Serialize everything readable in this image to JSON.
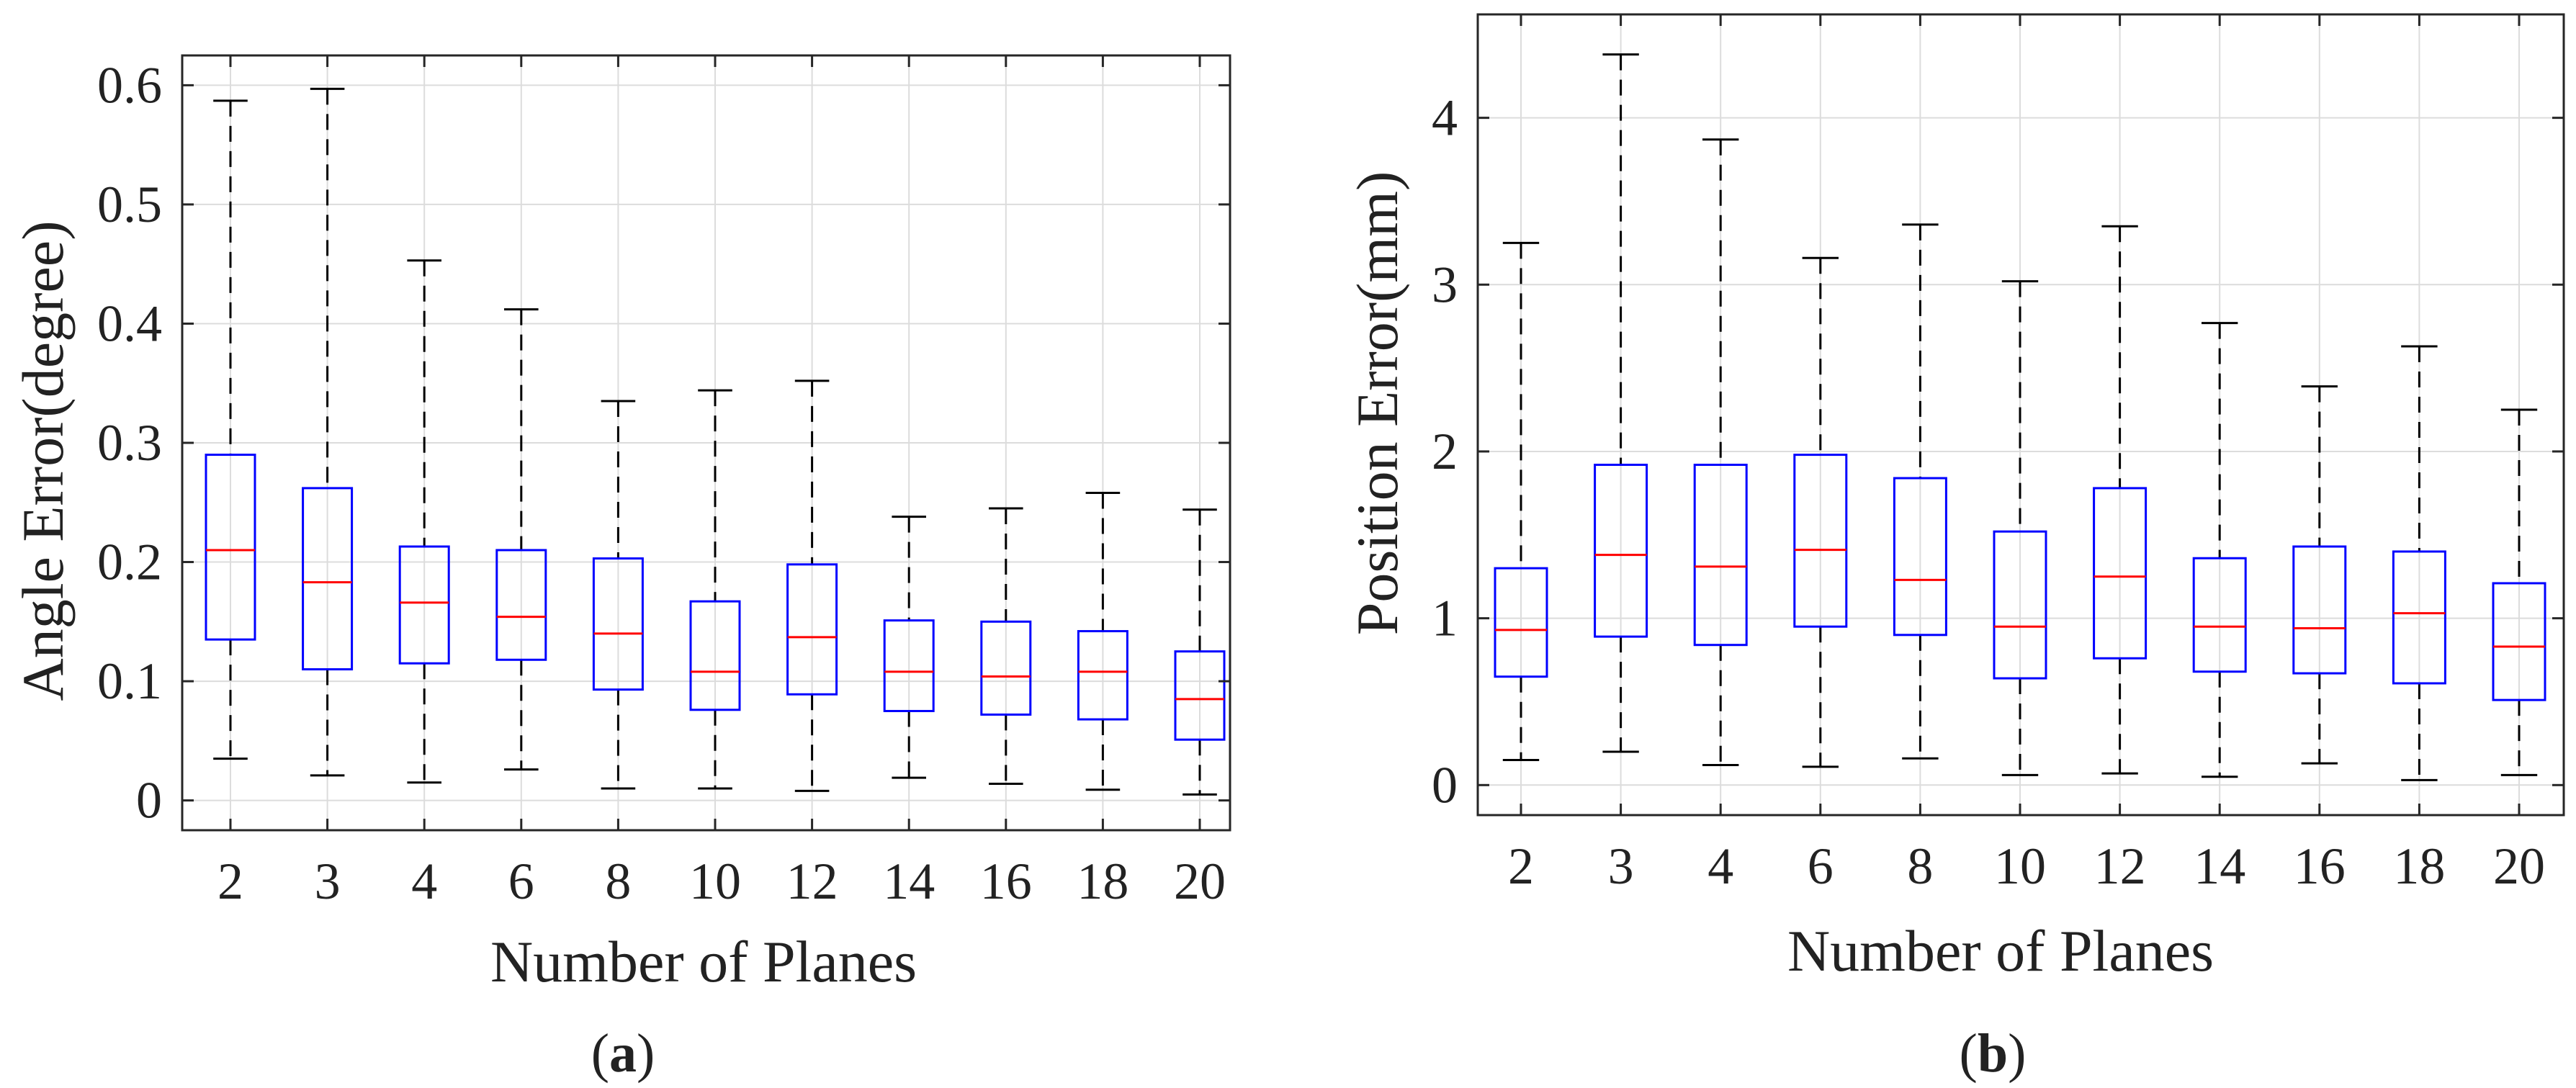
{
  "figure": {
    "captions": [
      {
        "prefix": "(",
        "letter": "a",
        "suffix": ")"
      },
      {
        "prefix": "(",
        "letter": "b",
        "suffix": ")"
      }
    ]
  },
  "chart_data": [
    {
      "type": "boxplot",
      "title": "",
      "xlabel": "Number of Planes",
      "ylabel": "Angle Error(degree)",
      "categories": [
        "2",
        "3",
        "4",
        "6",
        "8",
        "10",
        "12",
        "14",
        "16",
        "18",
        "20"
      ],
      "ylim": [
        -0.025,
        0.625
      ],
      "yticks": [
        0,
        0.1,
        0.2,
        0.3,
        0.4,
        0.5,
        0.6
      ],
      "ytick_labels": [
        "0",
        "0.1",
        "0.2",
        "0.3",
        "0.4",
        "0.5",
        "0.6"
      ],
      "grid": true,
      "colors": {
        "box": "#0000ff",
        "median": "#ff0000",
        "whisker": "#000000",
        "grid": "#dcdcdc",
        "axis": "#262626"
      },
      "boxes": [
        {
          "min": 0.035,
          "q1": 0.135,
          "median": 0.21,
          "q3": 0.29,
          "max": 0.587
        },
        {
          "min": 0.021,
          "q1": 0.11,
          "median": 0.183,
          "q3": 0.262,
          "max": 0.597
        },
        {
          "min": 0.015,
          "q1": 0.115,
          "median": 0.166,
          "q3": 0.213,
          "max": 0.453
        },
        {
          "min": 0.026,
          "q1": 0.118,
          "median": 0.154,
          "q3": 0.21,
          "max": 0.412
        },
        {
          "min": 0.01,
          "q1": 0.093,
          "median": 0.14,
          "q3": 0.203,
          "max": 0.335
        },
        {
          "min": 0.01,
          "q1": 0.076,
          "median": 0.108,
          "q3": 0.167,
          "max": 0.344
        },
        {
          "min": 0.008,
          "q1": 0.089,
          "median": 0.137,
          "q3": 0.198,
          "max": 0.352
        },
        {
          "min": 0.019,
          "q1": 0.075,
          "median": 0.108,
          "q3": 0.151,
          "max": 0.238
        },
        {
          "min": 0.014,
          "q1": 0.072,
          "median": 0.104,
          "q3": 0.15,
          "max": 0.245
        },
        {
          "min": 0.009,
          "q1": 0.068,
          "median": 0.108,
          "q3": 0.142,
          "max": 0.258
        },
        {
          "min": 0.005,
          "q1": 0.051,
          "median": 0.085,
          "q3": 0.125,
          "max": 0.244
        }
      ]
    },
    {
      "type": "boxplot",
      "title": "",
      "xlabel": "Number of Planes",
      "ylabel": "Position Error(mm)",
      "categories": [
        "2",
        "3",
        "4",
        "6",
        "8",
        "10",
        "12",
        "14",
        "16",
        "18",
        "20"
      ],
      "ylim": [
        -0.18,
        4.62
      ],
      "yticks": [
        0,
        1,
        2,
        3,
        4
      ],
      "ytick_labels": [
        "0",
        "1",
        "2",
        "3",
        "4"
      ],
      "grid": true,
      "colors": {
        "box": "#0000ff",
        "median": "#ff0000",
        "whisker": "#000000",
        "grid": "#dcdcdc",
        "axis": "#262626"
      },
      "boxes": [
        {
          "min": 0.15,
          "q1": 0.65,
          "median": 0.93,
          "q3": 1.3,
          "max": 3.25
        },
        {
          "min": 0.2,
          "q1": 0.89,
          "median": 1.38,
          "q3": 1.92,
          "max": 4.38
        },
        {
          "min": 0.12,
          "q1": 0.84,
          "median": 1.31,
          "q3": 1.92,
          "max": 3.87
        },
        {
          "min": 0.11,
          "q1": 0.95,
          "median": 1.41,
          "q3": 1.98,
          "max": 3.16
        },
        {
          "min": 0.16,
          "q1": 0.9,
          "median": 1.23,
          "q3": 1.84,
          "max": 3.36
        },
        {
          "min": 0.06,
          "q1": 0.64,
          "median": 0.95,
          "q3": 1.52,
          "max": 3.02
        },
        {
          "min": 0.07,
          "q1": 0.76,
          "median": 1.25,
          "q3": 1.78,
          "max": 3.35
        },
        {
          "min": 0.05,
          "q1": 0.68,
          "median": 0.95,
          "q3": 1.36,
          "max": 2.77
        },
        {
          "min": 0.13,
          "q1": 0.67,
          "median": 0.94,
          "q3": 1.43,
          "max": 2.39
        },
        {
          "min": 0.03,
          "q1": 0.61,
          "median": 1.03,
          "q3": 1.4,
          "max": 2.63
        },
        {
          "min": 0.06,
          "q1": 0.51,
          "median": 0.83,
          "q3": 1.21,
          "max": 2.25
        }
      ]
    }
  ]
}
